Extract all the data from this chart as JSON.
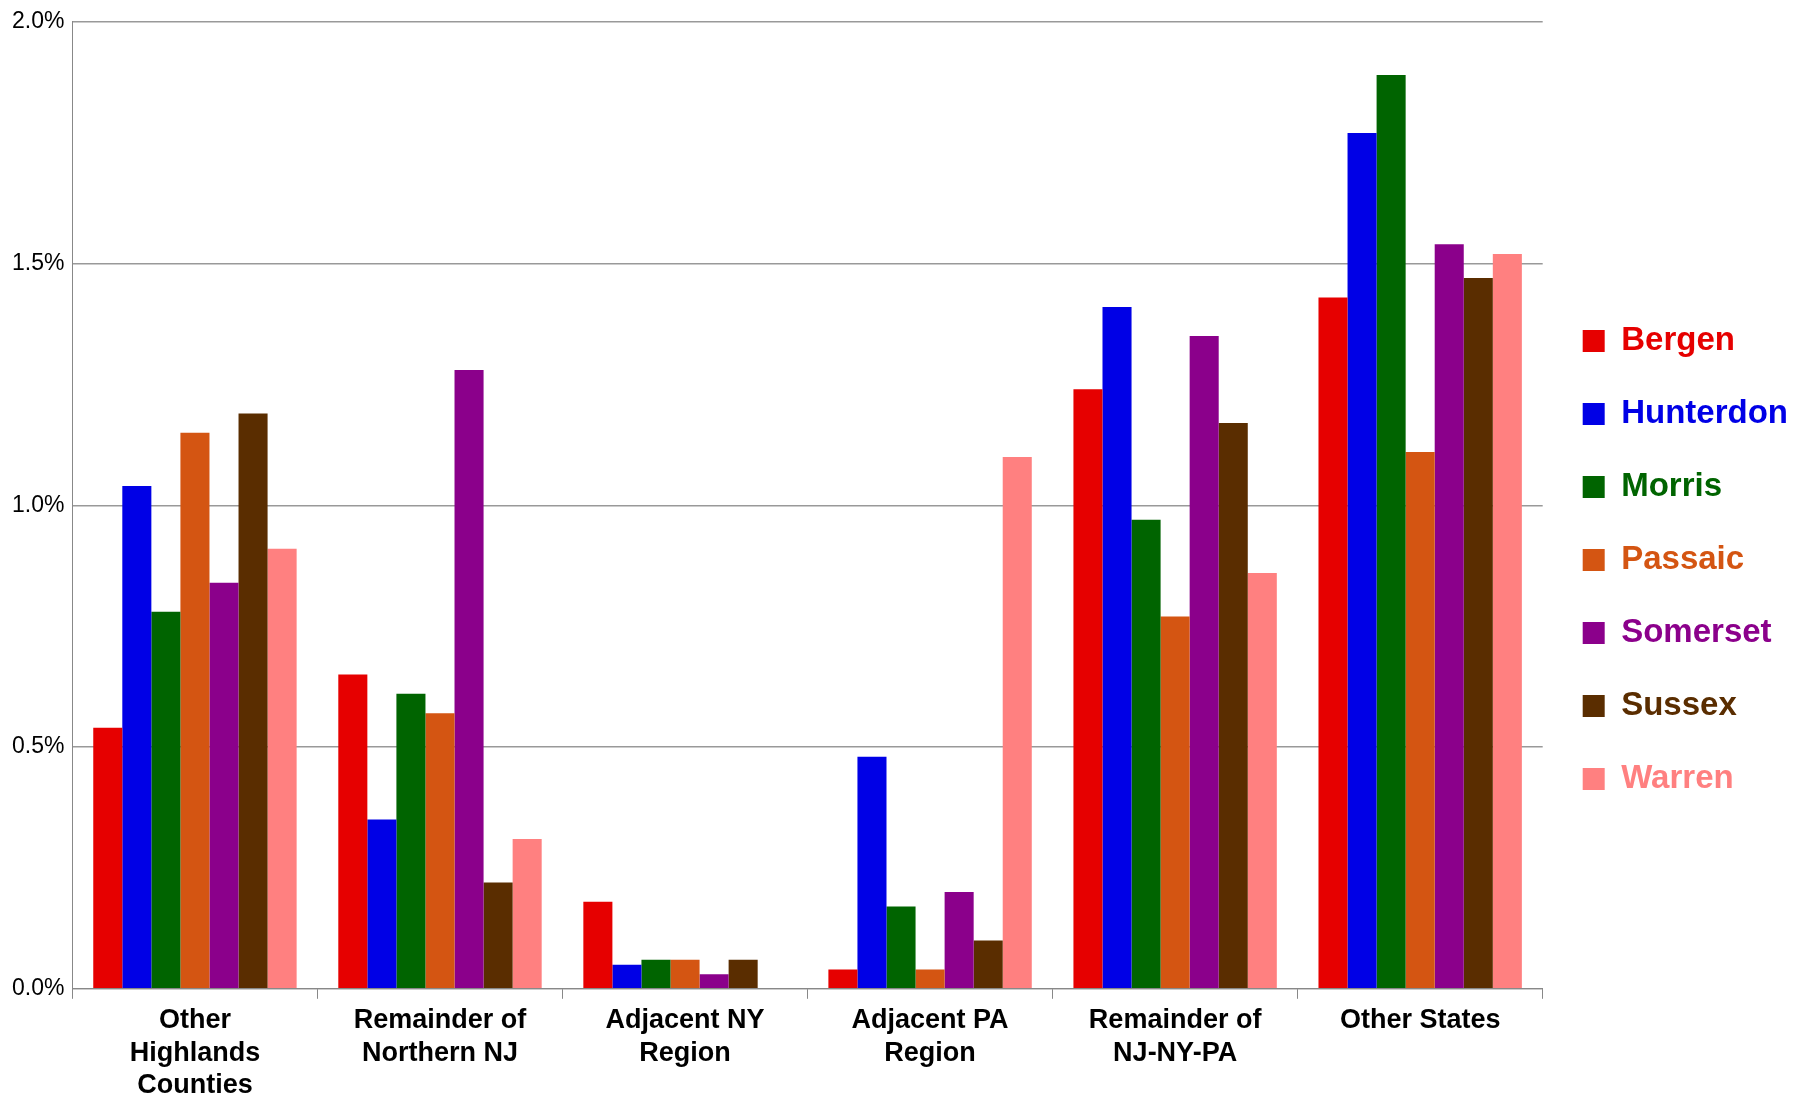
{
  "chart_data": {
    "type": "bar",
    "categories": [
      "Other Highlands Counties",
      "Remainder of Northern NJ",
      "Adjacent NY Region",
      "Adjacent PA Region",
      "Remainder of NJ-NY-PA",
      "Other States"
    ],
    "series": [
      {
        "name": "Bergen",
        "color": "#e60000",
        "values": [
          0.54,
          0.65,
          0.18,
          0.04,
          1.24,
          1.43
        ]
      },
      {
        "name": "Hunterdon",
        "color": "#0000e6",
        "values": [
          1.04,
          0.35,
          0.05,
          0.48,
          1.41,
          1.77
        ]
      },
      {
        "name": "Morris",
        "color": "#006400",
        "values": [
          0.78,
          0.61,
          0.06,
          0.17,
          0.97,
          1.89
        ]
      },
      {
        "name": "Passaic",
        "color": "#d45512",
        "values": [
          1.15,
          0.57,
          0.06,
          0.04,
          0.77,
          1.11
        ]
      },
      {
        "name": "Somerset",
        "color": "#8b008b",
        "values": [
          0.84,
          1.28,
          0.03,
          0.2,
          1.35,
          1.54
        ]
      },
      {
        "name": "Sussex",
        "color": "#5a2d00",
        "values": [
          1.19,
          0.22,
          0.06,
          0.1,
          1.17,
          1.47
        ]
      },
      {
        "name": "Warren",
        "color": "#ff8080",
        "values": [
          0.91,
          0.31,
          0,
          1.1,
          0.86,
          1.52
        ]
      }
    ],
    "ylim": [
      0,
      2
    ],
    "yticks": [
      {
        "value": 0,
        "label": "0.0%"
      },
      {
        "value": 0.5,
        "label": "0.5%"
      },
      {
        "value": 1,
        "label": "1.0%"
      },
      {
        "value": 1.5,
        "label": "1.5%"
      },
      {
        "value": 2,
        "label": "2.0%"
      }
    ],
    "grid": "y",
    "legend": "right"
  }
}
